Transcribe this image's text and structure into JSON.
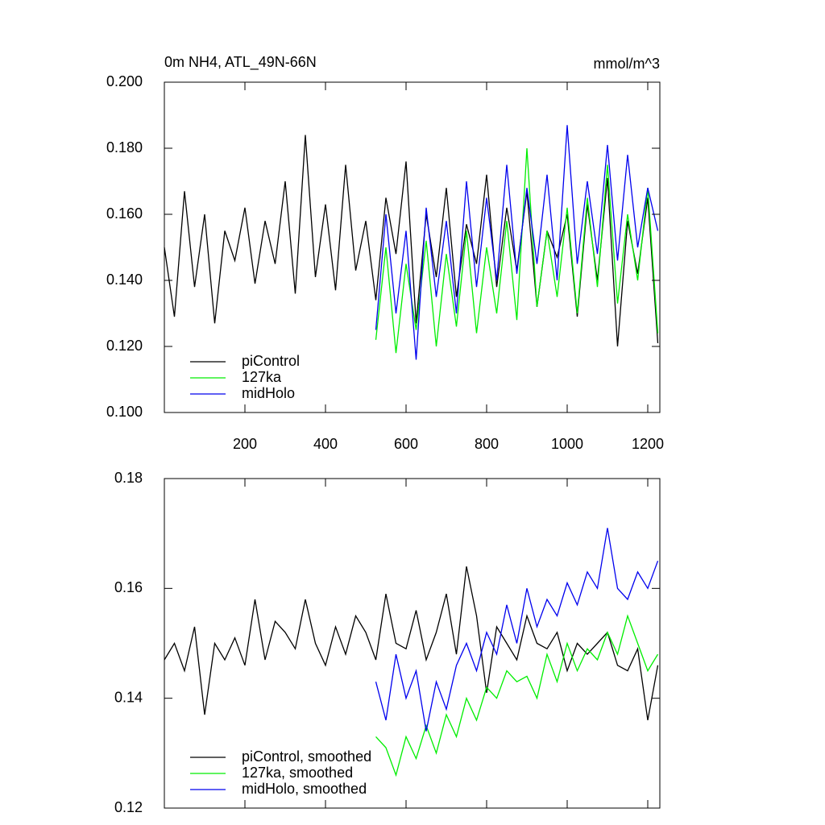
{
  "chart_data": [
    {
      "type": "line",
      "title": "0m NH4, ATL_49N-66N",
      "units": "mmol/m^3",
      "xlim": [
        0,
        1230
      ],
      "xticks": [
        200,
        400,
        600,
        800,
        1000,
        1200
      ],
      "show_xtick_labels": true,
      "ylim": [
        0.1,
        0.2
      ],
      "yticks": [
        {
          "value": 0.1,
          "label": "0.100"
        },
        {
          "value": 0.12,
          "label": "0.120"
        },
        {
          "value": 0.14,
          "label": "0.140"
        },
        {
          "value": 0.16,
          "label": "0.160"
        },
        {
          "value": 0.18,
          "label": "0.180"
        },
        {
          "value": 0.2,
          "label": "0.200"
        }
      ],
      "legend": "lower left",
      "series": [
        {
          "name": "piControl",
          "color": "#000000",
          "x": [
            0,
            25,
            50,
            75,
            100,
            125,
            150,
            175,
            200,
            225,
            250,
            275,
            300,
            325,
            350,
            375,
            400,
            425,
            450,
            475,
            500,
            525,
            550,
            575,
            600,
            625,
            650,
            675,
            700,
            725,
            750,
            775,
            800,
            825,
            850,
            875,
            900,
            925,
            950,
            975,
            1000,
            1025,
            1050,
            1075,
            1100,
            1125,
            1150,
            1175,
            1200,
            1225
          ],
          "values": [
            0.15,
            0.129,
            0.167,
            0.138,
            0.16,
            0.127,
            0.155,
            0.146,
            0.162,
            0.139,
            0.158,
            0.145,
            0.17,
            0.136,
            0.184,
            0.141,
            0.163,
            0.137,
            0.175,
            0.143,
            0.158,
            0.134,
            0.165,
            0.148,
            0.176,
            0.127,
            0.16,
            0.141,
            0.168,
            0.135,
            0.157,
            0.145,
            0.172,
            0.138,
            0.162,
            0.143,
            0.167,
            0.132,
            0.155,
            0.147,
            0.16,
            0.129,
            0.163,
            0.14,
            0.171,
            0.12,
            0.158,
            0.142,
            0.165,
            0.121
          ]
        },
        {
          "name": "127ka",
          "color": "#00ee00",
          "x": [
            525,
            550,
            575,
            600,
            625,
            650,
            675,
            700,
            725,
            750,
            775,
            800,
            825,
            850,
            875,
            900,
            925,
            950,
            975,
            1000,
            1025,
            1050,
            1075,
            1100,
            1125,
            1150,
            1175,
            1200,
            1225
          ],
          "values": [
            0.122,
            0.15,
            0.118,
            0.145,
            0.125,
            0.152,
            0.12,
            0.148,
            0.126,
            0.155,
            0.124,
            0.15,
            0.13,
            0.158,
            0.128,
            0.18,
            0.132,
            0.155,
            0.135,
            0.162,
            0.13,
            0.165,
            0.138,
            0.175,
            0.133,
            0.16,
            0.14,
            0.168,
            0.124
          ]
        },
        {
          "name": "midHolo",
          "color": "#0000ee",
          "x": [
            525,
            550,
            575,
            600,
            625,
            650,
            675,
            700,
            725,
            750,
            775,
            800,
            825,
            850,
            875,
            900,
            925,
            950,
            975,
            1000,
            1025,
            1050,
            1075,
            1100,
            1125,
            1150,
            1175,
            1200,
            1225
          ],
          "values": [
            0.125,
            0.16,
            0.13,
            0.155,
            0.116,
            0.162,
            0.135,
            0.158,
            0.13,
            0.17,
            0.138,
            0.165,
            0.14,
            0.175,
            0.142,
            0.168,
            0.145,
            0.172,
            0.14,
            0.187,
            0.145,
            0.17,
            0.148,
            0.181,
            0.146,
            0.178,
            0.15,
            0.168,
            0.155
          ]
        }
      ]
    },
    {
      "type": "line",
      "xlim": [
        0,
        1230
      ],
      "xticks": [
        200,
        400,
        600,
        800,
        1000,
        1200
      ],
      "show_xtick_labels": false,
      "ylim": [
        0.12,
        0.18
      ],
      "yticks": [
        0.12,
        0.14,
        0.16,
        0.18
      ],
      "legend": "lower left",
      "series": [
        {
          "name": "piControl, smoothed",
          "color": "#000000",
          "x": [
            0,
            25,
            50,
            75,
            100,
            125,
            150,
            175,
            200,
            225,
            250,
            275,
            300,
            325,
            350,
            375,
            400,
            425,
            450,
            475,
            500,
            525,
            550,
            575,
            600,
            625,
            650,
            675,
            700,
            725,
            750,
            775,
            800,
            825,
            850,
            875,
            900,
            925,
            950,
            975,
            1000,
            1025,
            1050,
            1075,
            1100,
            1125,
            1150,
            1175,
            1200,
            1225
          ],
          "values": [
            0.147,
            0.15,
            0.145,
            0.153,
            0.137,
            0.15,
            0.147,
            0.151,
            0.146,
            0.158,
            0.147,
            0.154,
            0.152,
            0.149,
            0.158,
            0.15,
            0.146,
            0.153,
            0.148,
            0.155,
            0.152,
            0.147,
            0.159,
            0.15,
            0.149,
            0.156,
            0.147,
            0.152,
            0.159,
            0.148,
            0.164,
            0.155,
            0.141,
            0.153,
            0.15,
            0.147,
            0.155,
            0.15,
            0.149,
            0.152,
            0.145,
            0.15,
            0.148,
            0.15,
            0.152,
            0.146,
            0.145,
            0.149,
            0.136,
            0.146
          ]
        },
        {
          "name": "127ka, smoothed",
          "color": "#00ee00",
          "x": [
            525,
            550,
            575,
            600,
            625,
            650,
            675,
            700,
            725,
            750,
            775,
            800,
            825,
            850,
            875,
            900,
            925,
            950,
            975,
            1000,
            1025,
            1050,
            1075,
            1100,
            1125,
            1150,
            1175,
            1200,
            1225
          ],
          "values": [
            0.133,
            0.131,
            0.126,
            0.133,
            0.129,
            0.135,
            0.13,
            0.137,
            0.133,
            0.14,
            0.136,
            0.142,
            0.14,
            0.145,
            0.143,
            0.144,
            0.14,
            0.148,
            0.143,
            0.15,
            0.145,
            0.149,
            0.147,
            0.152,
            0.148,
            0.155,
            0.15,
            0.145,
            0.148
          ]
        },
        {
          "name": "midHolo, smoothed",
          "color": "#0000ee",
          "x": [
            525,
            550,
            575,
            600,
            625,
            650,
            675,
            700,
            725,
            750,
            775,
            800,
            825,
            850,
            875,
            900,
            925,
            950,
            975,
            1000,
            1025,
            1050,
            1075,
            1100,
            1125,
            1150,
            1175,
            1200,
            1225
          ],
          "values": [
            0.143,
            0.136,
            0.148,
            0.14,
            0.145,
            0.134,
            0.143,
            0.138,
            0.146,
            0.15,
            0.145,
            0.152,
            0.148,
            0.157,
            0.15,
            0.16,
            0.153,
            0.158,
            0.155,
            0.161,
            0.157,
            0.163,
            0.16,
            0.171,
            0.16,
            0.158,
            0.163,
            0.16,
            0.165
          ]
        }
      ]
    }
  ]
}
